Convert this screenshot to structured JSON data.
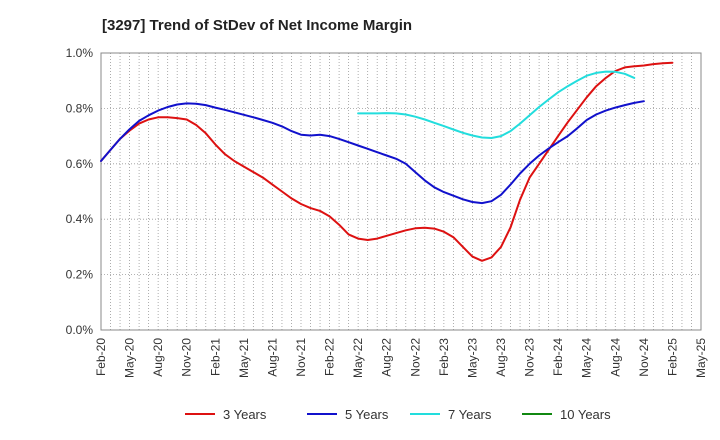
{
  "chart_data": {
    "type": "line",
    "title": "[3297]  Trend of StDev of Net Income Margin",
    "xlabel": "",
    "ylabel": "",
    "ylim": [
      0,
      1.0
    ],
    "y_ticks": [
      "0.0%",
      "0.2%",
      "0.4%",
      "0.6%",
      "0.8%",
      "1.0%"
    ],
    "y_tick_values": [
      0,
      0.2,
      0.4,
      0.6,
      0.8,
      1.0
    ],
    "x_ticks": [
      "Feb-20",
      "May-20",
      "Aug-20",
      "Nov-20",
      "Feb-21",
      "May-21",
      "Aug-21",
      "Nov-21",
      "Feb-22",
      "May-22",
      "Aug-22",
      "Nov-22",
      "Feb-23",
      "May-23",
      "Aug-23",
      "Nov-23",
      "Feb-24",
      "May-24",
      "Aug-24",
      "Nov-24",
      "Feb-25",
      "May-25"
    ],
    "grid": true,
    "legend_position": "bottom",
    "x_months": [
      "Feb-20",
      "Mar-20",
      "Apr-20",
      "May-20",
      "Jun-20",
      "Jul-20",
      "Aug-20",
      "Sep-20",
      "Oct-20",
      "Nov-20",
      "Dec-20",
      "Jan-21",
      "Feb-21",
      "Mar-21",
      "Apr-21",
      "May-21",
      "Jun-21",
      "Jul-21",
      "Aug-21",
      "Sep-21",
      "Oct-21",
      "Nov-21",
      "Dec-21",
      "Jan-22",
      "Feb-22",
      "Mar-22",
      "Apr-22",
      "May-22",
      "Jun-22",
      "Jul-22",
      "Aug-22",
      "Sep-22",
      "Oct-22",
      "Nov-22",
      "Dec-22",
      "Jan-23",
      "Feb-23",
      "Mar-23",
      "Apr-23",
      "May-23",
      "Jun-23",
      "Jul-23",
      "Aug-23",
      "Sep-23",
      "Oct-23",
      "Nov-23",
      "Dec-23",
      "Jan-24",
      "Feb-24",
      "Mar-24",
      "Apr-24",
      "May-24",
      "Jun-24",
      "Jul-24",
      "Aug-24",
      "Sep-24",
      "Oct-24",
      "Nov-24",
      "Dec-24",
      "Jan-25",
      "Feb-25",
      "Mar-25",
      "Apr-25",
      "May-25"
    ],
    "series": [
      {
        "name": "3 Years",
        "color": "#dd1111",
        "values": [
          0.61,
          0.65,
          0.69,
          0.72,
          0.745,
          0.76,
          0.768,
          0.768,
          0.765,
          0.76,
          0.74,
          0.71,
          0.67,
          0.635,
          0.61,
          0.59,
          0.57,
          0.55,
          0.525,
          0.5,
          0.475,
          0.455,
          0.44,
          0.43,
          0.41,
          0.38,
          0.345,
          0.33,
          0.325,
          0.33,
          0.34,
          0.35,
          0.36,
          0.367,
          0.369,
          0.366,
          0.355,
          0.335,
          0.3,
          0.265,
          0.25,
          0.262,
          0.3,
          0.37,
          0.47,
          0.55,
          0.6,
          0.65,
          0.7,
          0.75,
          0.795,
          0.84,
          0.88,
          0.91,
          0.935,
          0.948,
          0.952,
          0.955,
          0.96,
          0.963,
          0.965,
          null,
          null,
          null
        ]
      },
      {
        "name": "5 Years",
        "color": "#1111cc",
        "values": [
          0.61,
          0.65,
          0.69,
          0.725,
          0.755,
          0.775,
          0.792,
          0.805,
          0.814,
          0.818,
          0.817,
          0.812,
          0.803,
          0.795,
          0.786,
          0.777,
          0.768,
          0.758,
          0.748,
          0.735,
          0.718,
          0.705,
          0.702,
          0.705,
          0.7,
          0.69,
          0.678,
          0.666,
          0.654,
          0.642,
          0.63,
          0.618,
          0.6,
          0.57,
          0.54,
          0.515,
          0.498,
          0.485,
          0.472,
          0.462,
          0.458,
          0.465,
          0.488,
          0.525,
          0.565,
          0.6,
          0.63,
          0.655,
          0.678,
          0.7,
          0.728,
          0.758,
          0.778,
          0.792,
          0.803,
          0.812,
          0.82,
          0.826,
          null,
          null,
          null,
          null,
          null,
          null
        ]
      },
      {
        "name": "7 Years",
        "color": "#22dddd",
        "values": [
          null,
          null,
          null,
          null,
          null,
          null,
          null,
          null,
          null,
          null,
          null,
          null,
          null,
          null,
          null,
          null,
          null,
          null,
          null,
          null,
          null,
          null,
          null,
          null,
          null,
          null,
          null,
          0.782,
          0.782,
          0.782,
          0.783,
          0.782,
          0.778,
          0.77,
          0.76,
          0.748,
          0.736,
          0.724,
          0.712,
          0.702,
          0.695,
          0.693,
          0.7,
          0.718,
          0.745,
          0.775,
          0.805,
          0.832,
          0.858,
          0.88,
          0.9,
          0.918,
          0.928,
          0.933,
          0.932,
          0.925,
          0.91,
          null,
          null,
          null,
          null,
          null,
          null,
          null
        ]
      },
      {
        "name": "10 Years",
        "color": "#118811",
        "values": []
      }
    ]
  }
}
